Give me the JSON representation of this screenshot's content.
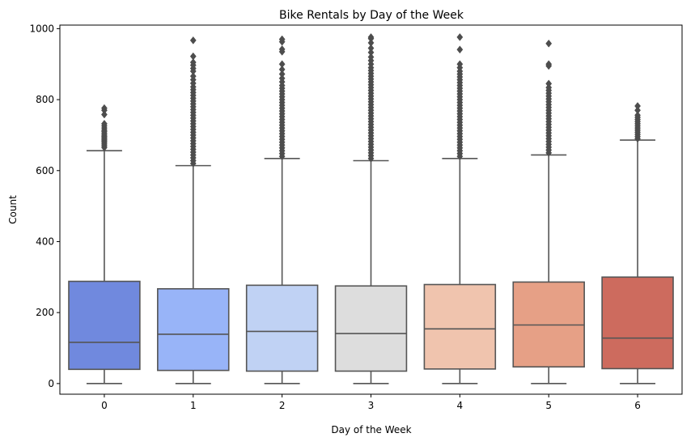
{
  "chart_data": {
    "type": "box",
    "title": "Bike Rentals by Day of the Week",
    "xlabel": "Day of the Week",
    "ylabel": "Count",
    "categories": [
      "0",
      "1",
      "2",
      "3",
      "4",
      "5",
      "6"
    ],
    "ylim": [
      -30,
      1010
    ],
    "yticks": [
      0,
      200,
      400,
      600,
      800,
      1000
    ],
    "ytick_labels": [
      "0",
      "200",
      "400",
      "600",
      "800",
      "1000"
    ],
    "grid": false,
    "boxes": [
      {
        "category": "0",
        "color": "#7089de",
        "min": 0,
        "q1": 40,
        "median": 116,
        "q3": 288,
        "whisker_high": 656,
        "outliers": [
          665,
          670,
          675,
          680,
          684,
          688,
          692,
          696,
          700,
          705,
          710,
          714,
          720,
          726,
          732,
          758,
          770,
          776
        ]
      },
      {
        "category": "1",
        "color": "#98b4f8",
        "min": 0,
        "q1": 37,
        "median": 139,
        "q3": 267,
        "whisker_high": 614,
        "outliers": [
          620,
          628,
          636,
          644,
          652,
          660,
          668,
          676,
          684,
          692,
          700,
          708,
          716,
          724,
          732,
          740,
          748,
          756,
          764,
          772,
          780,
          788,
          796,
          804,
          812,
          820,
          828,
          836,
          846,
          856,
          866,
          880,
          888,
          897,
          905,
          922,
          967
        ]
      },
      {
        "category": "2",
        "color": "#c0d2f4",
        "min": 0,
        "q1": 35,
        "median": 147,
        "q3": 277,
        "whisker_high": 634,
        "outliers": [
          640,
          648,
          656,
          664,
          672,
          680,
          688,
          696,
          704,
          712,
          720,
          728,
          736,
          744,
          752,
          760,
          768,
          776,
          784,
          792,
          800,
          808,
          816,
          824,
          832,
          840,
          850,
          860,
          872,
          885,
          900,
          935,
          942,
          963,
          970
        ]
      },
      {
        "category": "3",
        "color": "#dddddd",
        "min": 0,
        "q1": 35,
        "median": 141,
        "q3": 275,
        "whisker_high": 628,
        "outliers": [
          634,
          642,
          650,
          658,
          666,
          674,
          682,
          690,
          698,
          706,
          714,
          722,
          730,
          738,
          746,
          754,
          762,
          770,
          778,
          786,
          794,
          802,
          810,
          818,
          826,
          834,
          842,
          850,
          858,
          866,
          874,
          882,
          890,
          900,
          910,
          920,
          933,
          945,
          960,
          972,
          976
        ]
      },
      {
        "category": "4",
        "color": "#f0c4ae",
        "min": 0,
        "q1": 41,
        "median": 154,
        "q3": 279,
        "whisker_high": 634,
        "outliers": [
          640,
          648,
          656,
          664,
          672,
          680,
          688,
          696,
          704,
          712,
          720,
          728,
          736,
          744,
          752,
          760,
          768,
          776,
          784,
          792,
          800,
          808,
          816,
          824,
          832,
          840,
          848,
          856,
          864,
          872,
          880,
          890,
          900,
          941,
          976
        ]
      },
      {
        "category": "5",
        "color": "#e6a086",
        "min": 0,
        "q1": 47,
        "median": 165,
        "q3": 286,
        "whisker_high": 644,
        "outliers": [
          650,
          658,
          666,
          674,
          682,
          690,
          698,
          706,
          714,
          722,
          730,
          738,
          746,
          754,
          762,
          770,
          778,
          786,
          794,
          802,
          810,
          818,
          826,
          834,
          845,
          895,
          900,
          958
        ]
      },
      {
        "category": "6",
        "color": "#cd6b5e",
        "min": 0,
        "q1": 42,
        "median": 128,
        "q3": 300,
        "whisker_high": 686,
        "outliers": [
          690,
          696,
          702,
          708,
          714,
          720,
          726,
          732,
          738,
          744,
          750,
          756,
          770,
          782
        ]
      }
    ]
  }
}
